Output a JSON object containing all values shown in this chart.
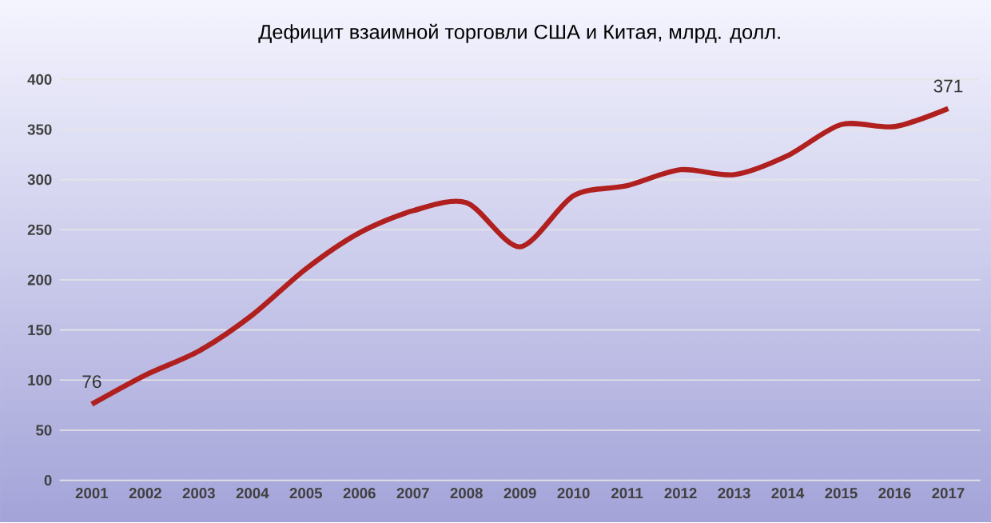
{
  "chart_data": {
    "type": "line",
    "title": "Дефицит взаимной торговли США и Китая, млрд. долл.",
    "categories": [
      "2001",
      "2002",
      "2003",
      "2004",
      "2005",
      "2006",
      "2007",
      "2008",
      "2009",
      "2010",
      "2011",
      "2012",
      "2013",
      "2014",
      "2015",
      "2016",
      "2017"
    ],
    "series": [
      {
        "color": "#b0201e",
        "values": [
          76,
          105,
          129,
          165,
          211,
          247,
          269,
          277,
          233,
          284,
          294,
          310,
          305,
          324,
          355,
          353,
          371
        ],
        "value_labels": [
          "76",
          null,
          null,
          null,
          null,
          null,
          null,
          null,
          null,
          null,
          null,
          null,
          null,
          null,
          null,
          null,
          "371"
        ]
      }
    ],
    "ylim": [
      0,
      400
    ],
    "yticks": [
      0,
      50,
      100,
      150,
      200,
      250,
      300,
      350,
      400
    ],
    "grid": "y",
    "marker": "none",
    "line_style": "solid"
  }
}
